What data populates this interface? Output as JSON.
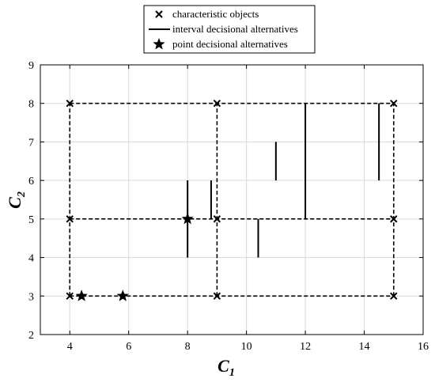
{
  "chart_data": {
    "type": "scatter",
    "xlabel": "C",
    "xlabel_sub": "1",
    "ylabel": "C",
    "ylabel_sub": "2",
    "xlim": [
      3,
      16
    ],
    "ylim": [
      2,
      9
    ],
    "xticks": [
      4,
      6,
      8,
      10,
      12,
      14,
      16
    ],
    "yticks": [
      2,
      3,
      4,
      5,
      6,
      7,
      8,
      9
    ],
    "grid": true,
    "legend_position": "top-center-outside",
    "legend": [
      {
        "name": "characteristic objects",
        "marker": "x-icon"
      },
      {
        "name": "interval decisional alternatives",
        "marker": "line-icon"
      },
      {
        "name": "point decisional alternatives",
        "marker": "star-icon"
      }
    ],
    "characteristic_objects": {
      "x": [
        4,
        9,
        15
      ],
      "y": [
        3,
        5,
        8
      ],
      "grid_lines": "dashed"
    },
    "interval_alternatives": [
      {
        "x": 8,
        "y_low": 4,
        "y_high": 6
      },
      {
        "x": 8.8,
        "y_low": 5,
        "y_high": 6
      },
      {
        "x": 10.4,
        "y_low": 4,
        "y_high": 5
      },
      {
        "x": 11,
        "y_low": 6,
        "y_high": 7
      },
      {
        "x": 12,
        "y_low": 5,
        "y_high": 8
      },
      {
        "x": 14.5,
        "y_low": 6,
        "y_high": 8
      }
    ],
    "point_alternatives": [
      {
        "x": 4.4,
        "y": 3
      },
      {
        "x": 5.8,
        "y": 3
      },
      {
        "x": 8,
        "y": 5
      }
    ],
    "colors": {
      "axis": "#000000",
      "grid": "#d9d9d9",
      "series": "#000000"
    }
  }
}
